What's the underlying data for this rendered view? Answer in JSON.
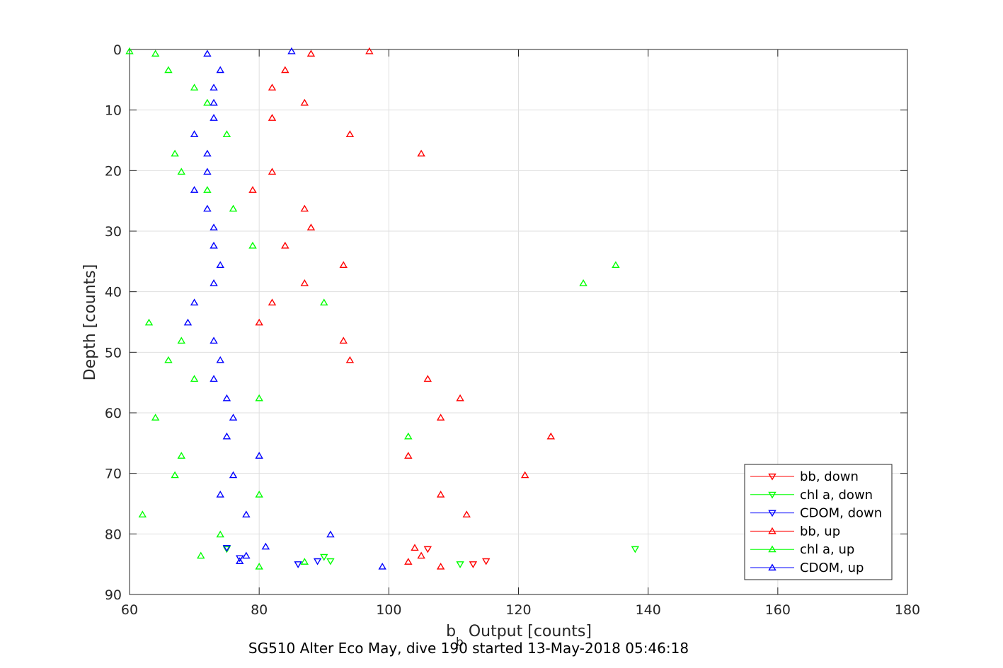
{
  "chart_data": {
    "type": "scatter",
    "title": "",
    "caption": "SG510 Alter Eco May, dive 190 started 13-May-2018 05:46:18",
    "xlabel_base": "b",
    "xlabel_sub": "b",
    "xlabel_rest": " Output [counts]",
    "ylabel": "Depth [counts]",
    "xlim": [
      60,
      180
    ],
    "ylim": [
      0,
      90
    ],
    "y_reversed": true,
    "x_ticks": [
      "60",
      "80",
      "100",
      "120",
      "140",
      "160",
      "180"
    ],
    "y_ticks": [
      "0",
      "10",
      "20",
      "30",
      "40",
      "50",
      "60",
      "70",
      "80",
      "90"
    ],
    "grid": true,
    "legend_position": "bottom-right",
    "series": [
      {
        "name": "bb, down",
        "color": "#ff0000",
        "marker": "triangle-down",
        "points": [
          [
            106,
            82.5
          ],
          [
            115,
            84.5
          ],
          [
            113,
            85
          ]
        ]
      },
      {
        "name": "chl a, down",
        "color": "#00ff00",
        "marker": "triangle-down",
        "points": [
          [
            138,
            82.5
          ],
          [
            75,
            82.5
          ],
          [
            90,
            83.8
          ],
          [
            91,
            84.5
          ],
          [
            111,
            85
          ]
        ]
      },
      {
        "name": "CDOM, down",
        "color": "#0000ff",
        "marker": "triangle-down",
        "points": [
          [
            75,
            82.3
          ],
          [
            77,
            84
          ],
          [
            89,
            84.5
          ],
          [
            86,
            85
          ]
        ]
      },
      {
        "name": "bb, up",
        "color": "#ff0000",
        "marker": "triangle-up",
        "points": [
          [
            97,
            0.3
          ],
          [
            88,
            0.7
          ],
          [
            84,
            3.4
          ],
          [
            82,
            6.3
          ],
          [
            87,
            8.8
          ],
          [
            82,
            11.3
          ],
          [
            94,
            14
          ],
          [
            105,
            17.2
          ],
          [
            82,
            20.2
          ],
          [
            79,
            23.2
          ],
          [
            87,
            26.3
          ],
          [
            88,
            29.4
          ],
          [
            84,
            32.4
          ],
          [
            93,
            35.6
          ],
          [
            87,
            38.6
          ],
          [
            82,
            41.8
          ],
          [
            80,
            45.1
          ],
          [
            93,
            48.1
          ],
          [
            94,
            51.3
          ],
          [
            106,
            54.4
          ],
          [
            111,
            57.6
          ],
          [
            108,
            60.8
          ],
          [
            125,
            63.9
          ],
          [
            103,
            67.1
          ],
          [
            121,
            70.3
          ],
          [
            108,
            73.5
          ],
          [
            112,
            76.8
          ],
          [
            104,
            82.3
          ],
          [
            105,
            83.6
          ],
          [
            103,
            84.6
          ],
          [
            108,
            85.4
          ]
        ]
      },
      {
        "name": "chl a, up",
        "color": "#00ff00",
        "marker": "triangle-up",
        "points": [
          [
            60,
            0.3
          ],
          [
            64,
            0.7
          ],
          [
            66,
            3.4
          ],
          [
            70,
            6.3
          ],
          [
            72,
            8.8
          ],
          [
            75,
            14
          ],
          [
            67,
            17.2
          ],
          [
            68,
            20.2
          ],
          [
            72,
            23.2
          ],
          [
            76,
            26.3
          ],
          [
            79,
            32.4
          ],
          [
            135,
            35.6
          ],
          [
            130,
            38.6
          ],
          [
            90,
            41.8
          ],
          [
            63,
            45.1
          ],
          [
            68,
            48.1
          ],
          [
            66,
            51.3
          ],
          [
            70,
            54.4
          ],
          [
            80,
            57.6
          ],
          [
            64,
            60.8
          ],
          [
            103,
            63.9
          ],
          [
            68,
            67.1
          ],
          [
            67,
            70.3
          ],
          [
            80,
            73.5
          ],
          [
            62,
            76.8
          ],
          [
            74,
            80.1
          ],
          [
            71,
            83.6
          ],
          [
            87,
            84.6
          ],
          [
            80,
            85.4
          ]
        ]
      },
      {
        "name": "CDOM, up",
        "color": "#0000ff",
        "marker": "triangle-up",
        "points": [
          [
            85,
            0.3
          ],
          [
            72,
            0.7
          ],
          [
            74,
            3.4
          ],
          [
            73,
            6.3
          ],
          [
            73,
            8.8
          ],
          [
            73,
            11.3
          ],
          [
            70,
            14
          ],
          [
            72,
            17.2
          ],
          [
            72,
            20.2
          ],
          [
            70,
            23.2
          ],
          [
            72,
            26.3
          ],
          [
            73,
            29.4
          ],
          [
            73,
            32.4
          ],
          [
            74,
            35.6
          ],
          [
            73,
            38.6
          ],
          [
            70,
            41.8
          ],
          [
            69,
            45.1
          ],
          [
            73,
            48.1
          ],
          [
            74,
            51.3
          ],
          [
            73,
            54.4
          ],
          [
            75,
            57.6
          ],
          [
            76,
            60.8
          ],
          [
            75,
            63.9
          ],
          [
            80,
            67.1
          ],
          [
            76,
            70.3
          ],
          [
            74,
            73.5
          ],
          [
            78,
            76.8
          ],
          [
            91,
            80.1
          ],
          [
            81,
            82.1
          ],
          [
            78,
            83.6
          ],
          [
            77,
            84.5
          ],
          [
            99,
            85.4
          ]
        ]
      }
    ]
  }
}
